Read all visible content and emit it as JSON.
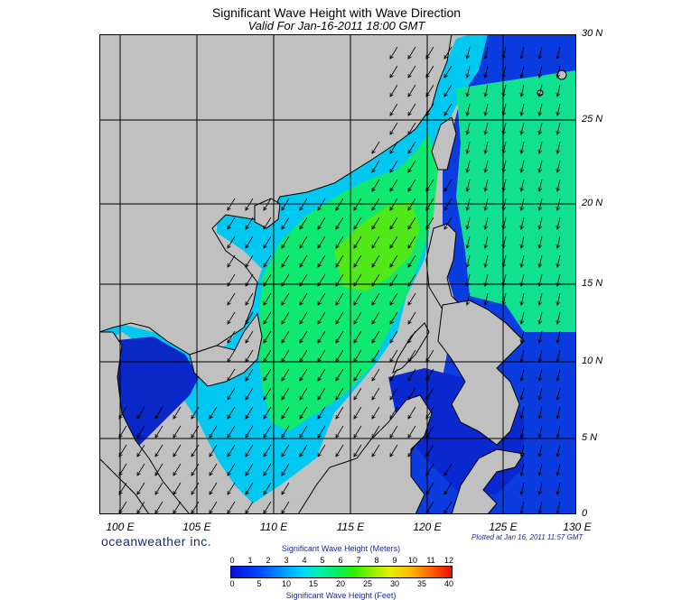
{
  "header": {
    "title": "Significant Wave Height with Wave Direction",
    "subtitle": "Valid For Jan-16-2011 18:00 GMT"
  },
  "map": {
    "lat_labels": [
      "30 N",
      "25 N",
      "20 N",
      "15 N",
      "10 N",
      "5 N",
      "0"
    ],
    "lon_labels": [
      "100 E",
      "105 E",
      "110 E",
      "115 E",
      "120 E",
      "125 E",
      "130 E"
    ],
    "colors": {
      "land": "#c0c0c0",
      "coast": "#000000",
      "grid": "#000000",
      "arrow": "#000000"
    },
    "wave_direction": "southwest"
  },
  "footer": {
    "brand": "oceanweather inc.",
    "plotted": "Plotted at Jan 16, 2011 11:57 GMT"
  },
  "colorbar": {
    "top_title": "Significant Wave Height (Meters)",
    "top_ticks": [
      "0",
      "1",
      "2",
      "3",
      "4",
      "5",
      "6",
      "7",
      "8",
      "9",
      "10",
      "11",
      "12"
    ],
    "bottom_ticks": [
      "0",
      "5",
      "10",
      "15",
      "20",
      "25",
      "30",
      "35",
      "40"
    ],
    "bottom_title": "Significant Wave Height (Feet)"
  }
}
